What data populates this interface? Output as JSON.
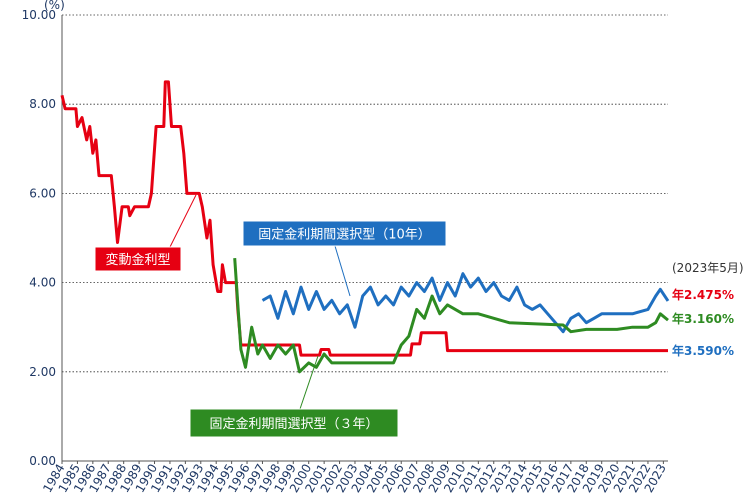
{
  "chart_data": {
    "type": "line",
    "y_unit": "(%)",
    "date_note": "(2023年5月)",
    "xlim": [
      1984,
      2023.3
    ],
    "xticks": [
      1984,
      1985,
      1986,
      1987,
      1988,
      1989,
      1990,
      1991,
      1992,
      1993,
      1994,
      1995,
      1996,
      1997,
      1998,
      1999,
      2000,
      2001,
      2002,
      2003,
      2004,
      2005,
      2006,
      2007,
      2008,
      2009,
      2010,
      2011,
      2012,
      2013,
      2014,
      2015,
      2016,
      2017,
      2018,
      2019,
      2020,
      2021,
      2022,
      2023
    ],
    "ylim": [
      0,
      10
    ],
    "yticks": [
      {
        "value": 0,
        "label": "0.00"
      },
      {
        "value": 2,
        "label": "2.00"
      },
      {
        "value": 4,
        "label": "4.00"
      },
      {
        "value": 6,
        "label": "6.00"
      },
      {
        "value": 8,
        "label": "8.00"
      },
      {
        "value": 10,
        "label": "10.00"
      }
    ],
    "grid": true,
    "series": [
      {
        "name": "変動金利型",
        "color": "#e60012",
        "x": [
          1984.0,
          1984.2,
          1984.9,
          1985.0,
          1985.3,
          1985.6,
          1985.8,
          1986.0,
          1986.2,
          1986.4,
          1987.2,
          1987.4,
          1987.6,
          1987.9,
          1988.3,
          1988.4,
          1988.7,
          1989.6,
          1989.8,
          1990.1,
          1990.6,
          1990.7,
          1990.9,
          1991.1,
          1991.7,
          1991.9,
          1992.1,
          1992.9,
          1993.1,
          1993.4,
          1993.6,
          1993.8,
          1994.1,
          1994.3,
          1994.4,
          1994.6,
          1995.3,
          1995.4,
          1995.6,
          1999.4,
          1999.5,
          2000.7,
          2000.8,
          2001.3,
          2001.4,
          2006.6,
          2006.7,
          2007.2,
          2007.3,
          2008.9,
          2009.0,
          2023.3
        ],
        "values": [
          8.2,
          7.9,
          7.9,
          7.5,
          7.7,
          7.2,
          7.5,
          6.9,
          7.2,
          6.4,
          6.4,
          5.7,
          4.9,
          5.7,
          5.7,
          5.5,
          5.7,
          5.7,
          6.0,
          7.5,
          7.5,
          8.5,
          8.5,
          7.5,
          7.5,
          6.9,
          6.0,
          6.0,
          5.7,
          5.0,
          5.4,
          4.4,
          3.8,
          3.8,
          4.4,
          4.0,
          4.0,
          3.4,
          2.6,
          2.6,
          2.375,
          2.375,
          2.5,
          2.5,
          2.375,
          2.375,
          2.625,
          2.625,
          2.875,
          2.875,
          2.475,
          2.475
        ],
        "end_label": {
          "value": 2.475,
          "label": "年2.475%"
        }
      },
      {
        "name": "固定金利期間選択型（10年）",
        "color": "#1f6fc0",
        "x": [
          1997.0,
          1997.5,
          1998.0,
          1998.5,
          1999.0,
          1999.5,
          2000.0,
          2000.5,
          2001.0,
          2001.5,
          2002.0,
          2002.5,
          2003.0,
          2003.5,
          2004.0,
          2004.5,
          2005.0,
          2005.5,
          2006.0,
          2006.5,
          2007.0,
          2007.5,
          2008.0,
          2008.5,
          2009.0,
          2009.5,
          2010.0,
          2010.5,
          2011.0,
          2011.5,
          2012.0,
          2012.5,
          2013.0,
          2013.5,
          2014.0,
          2014.5,
          2015.0,
          2015.5,
          2016.0,
          2016.5,
          2017.0,
          2017.5,
          2018.0,
          2018.5,
          2019.0,
          2020.0,
          2021.0,
          2022.0,
          2022.5,
          2022.8,
          2023.3
        ],
        "values": [
          3.6,
          3.7,
          3.2,
          3.8,
          3.3,
          3.9,
          3.4,
          3.8,
          3.4,
          3.6,
          3.3,
          3.5,
          3.0,
          3.7,
          3.9,
          3.5,
          3.7,
          3.5,
          3.9,
          3.7,
          4.0,
          3.8,
          4.1,
          3.6,
          4.0,
          3.7,
          4.2,
          3.9,
          4.1,
          3.8,
          4.0,
          3.7,
          3.6,
          3.9,
          3.5,
          3.4,
          3.5,
          3.3,
          3.1,
          2.9,
          3.2,
          3.3,
          3.1,
          3.2,
          3.3,
          3.3,
          3.3,
          3.4,
          3.7,
          3.85,
          3.59
        ],
        "end_label": {
          "value": 3.59,
          "label": "年3.590%"
        }
      },
      {
        "name": "固定金利期間選択型（３年）",
        "color": "#2e8b22",
        "x": [
          1995.2,
          1995.6,
          1995.9,
          1996.3,
          1996.7,
          1997.0,
          1997.5,
          1998.0,
          1998.5,
          1999.0,
          1999.4,
          2000.0,
          2000.5,
          2001.0,
          2001.5,
          2005.5,
          2006.0,
          2006.5,
          2007.0,
          2007.5,
          2008.0,
          2008.5,
          2009.0,
          2010.0,
          2011.0,
          2012.0,
          2013.0,
          2016.5,
          2017.0,
          2018.0,
          2020.0,
          2021.0,
          2022.0,
          2022.5,
          2022.8,
          2023.3
        ],
        "values": [
          4.55,
          2.5,
          2.1,
          3.0,
          2.4,
          2.6,
          2.3,
          2.6,
          2.4,
          2.6,
          2.0,
          2.2,
          2.1,
          2.4,
          2.2,
          2.2,
          2.6,
          2.8,
          3.4,
          3.2,
          3.7,
          3.3,
          3.5,
          3.3,
          3.3,
          3.2,
          3.1,
          3.05,
          2.9,
          2.95,
          2.95,
          3.0,
          3.0,
          3.1,
          3.3,
          3.16
        ],
        "end_label": {
          "value": 3.16,
          "label": "年3.160%"
        }
      }
    ]
  }
}
